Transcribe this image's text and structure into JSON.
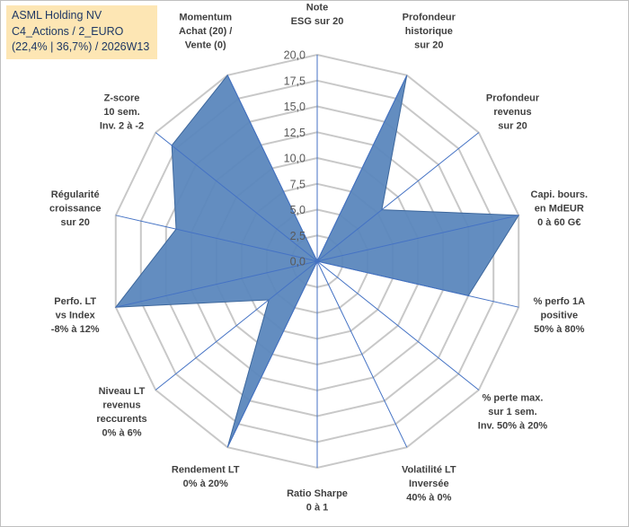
{
  "title_box": {
    "line1": "ASML Holding NV",
    "line2": "C4_Actions / 2_EURO",
    "line3": "(22,4% | 36,7%) / 2026W13"
  },
  "colors": {
    "fill": "#5b87bd",
    "stroke": "#3d679c",
    "grid": "#c8c8c8",
    "spoke": "#4472c4",
    "title_bg": "#fde6b4",
    "title_text": "#1f3864"
  },
  "chart_data": {
    "type": "radar",
    "range": [
      0,
      20
    ],
    "tick_step": 2.5,
    "tick_labels": [
      "0,0",
      "2,5",
      "5,0",
      "7,5",
      "10,0",
      "12,5",
      "15,0",
      "17,5",
      "20,0"
    ],
    "axes": [
      {
        "label": [
          "Note",
          "ESG sur 20"
        ],
        "value": 0
      },
      {
        "label": [
          "Profondeur",
          "historique",
          "sur 20"
        ],
        "value": 20
      },
      {
        "label": [
          "Profondeur",
          "revenus",
          "sur 20"
        ],
        "value": 8
      },
      {
        "label": [
          "Capi. bours.",
          "en MdEUR",
          "0 à 60 G€"
        ],
        "value": 20
      },
      {
        "label": [
          "% perfo 1A",
          "positive",
          "50% à 80%"
        ],
        "value": 15
      },
      {
        "label": [
          "% perte max.",
          "sur 1 sem.",
          "Inv. 50% à 20%"
        ],
        "value": 0
      },
      {
        "label": [
          "Volatilité LT",
          "Inversée",
          "40% à 0%"
        ],
        "value": 0
      },
      {
        "label": [
          "Ratio Sharpe",
          "0 à 1"
        ],
        "value": 0
      },
      {
        "label": [
          "Rendement LT",
          "0% à 20%"
        ],
        "value": 20
      },
      {
        "label": [
          "Niveau LT",
          "revenus",
          "reccurents",
          "0% à 6%"
        ],
        "value": 6
      },
      {
        "label": [
          "Perfo. LT",
          "vs Index",
          "-8% à 12%"
        ],
        "value": 20
      },
      {
        "label": [
          "Régularité",
          "croissance",
          "sur 20"
        ],
        "value": 14
      },
      {
        "label": [
          "Z-score",
          "10 sem.",
          "Inv. 2 à -2"
        ],
        "value": 18
      },
      {
        "label": [
          "Momentum",
          "Achat (20) /",
          "Vente (0)"
        ],
        "value": 20
      }
    ]
  }
}
